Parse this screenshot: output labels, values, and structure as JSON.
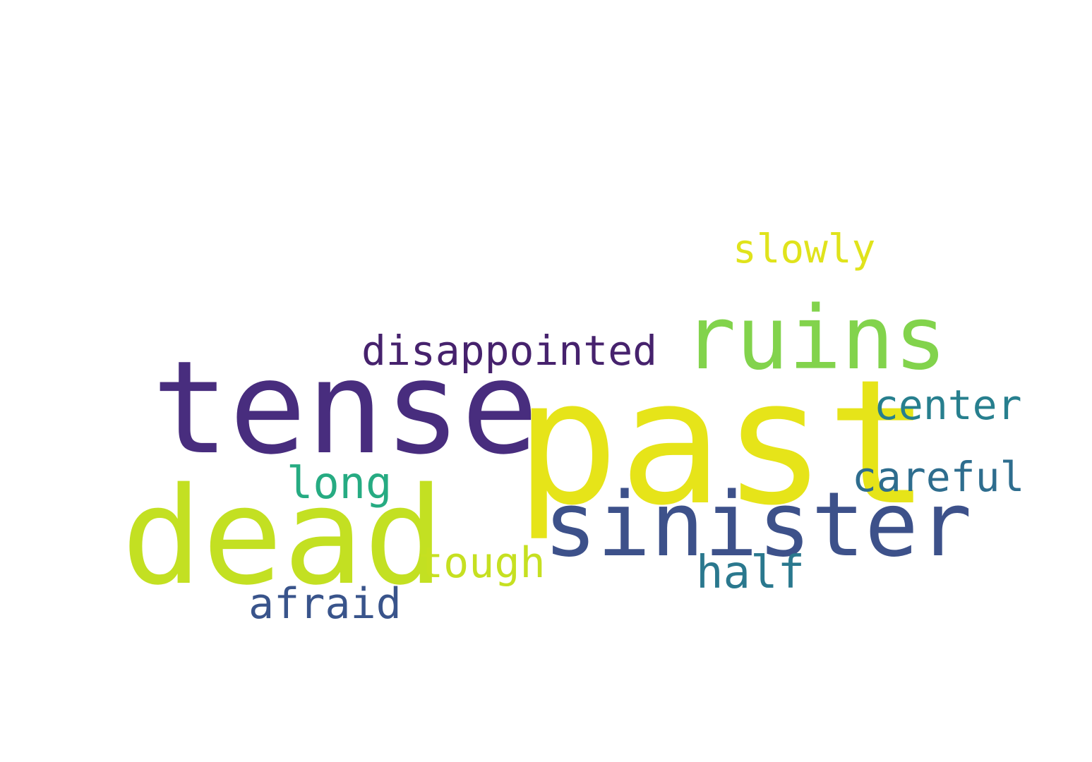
{
  "words": [
    {
      "text": "past",
      "color": "#e6e419"
    },
    {
      "text": "tense",
      "color": "#482d7e"
    },
    {
      "text": "dead",
      "color": "#c3e022"
    },
    {
      "text": "sinister",
      "color": "#3d518a"
    },
    {
      "text": "ruins",
      "color": "#82d34c"
    },
    {
      "text": "disappointed",
      "color": "#46226d"
    },
    {
      "text": "slowly",
      "color": "#e0e31c"
    },
    {
      "text": "center",
      "color": "#277f8e"
    },
    {
      "text": "careful",
      "color": "#2e6d8e"
    },
    {
      "text": "long",
      "color": "#26ab82"
    },
    {
      "text": "tough",
      "color": "#c6e021"
    },
    {
      "text": "half",
      "color": "#2a788e"
    },
    {
      "text": "afraid",
      "color": "#39548b"
    }
  ]
}
